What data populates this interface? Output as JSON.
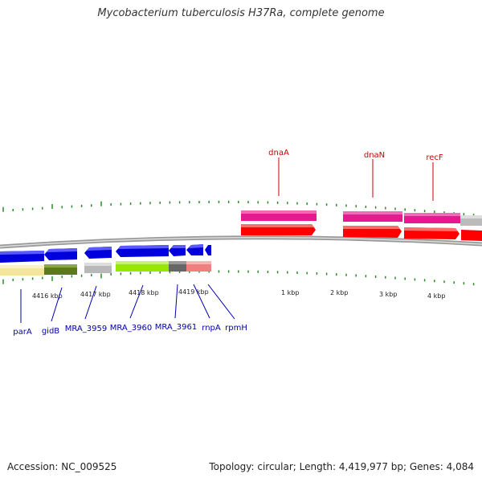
{
  "title": "Mycobacterium tuberculosis H37Ra, complete genome",
  "footer": {
    "accession": "Accession: NC_009525",
    "summary": "Topology: circular; Length: 4,419,977 bp; Genes: 4,084"
  },
  "colors": {
    "forward_gene": "#ff0000",
    "forward_category": "#e8198f",
    "reverse_gene": "#0000dd",
    "forward_label": "#cc0000",
    "reverse_label": "#0000aa",
    "tick": "#2a8a2a",
    "backbone": "#888888"
  },
  "tick_labels": [
    "4416 kbp",
    "4417 kbp",
    "4418 kbp",
    "4419 kbp",
    "1 kbp",
    "2 kbp",
    "3 kbp",
    "4 kbp"
  ],
  "forward_genes": [
    "dnaA",
    "dnaN",
    "recF"
  ],
  "reverse_genes": [
    "parA",
    "gidB",
    "MRA_3959",
    "MRA_3960",
    "MRA_3961",
    "rnpA",
    "rpmH"
  ]
}
